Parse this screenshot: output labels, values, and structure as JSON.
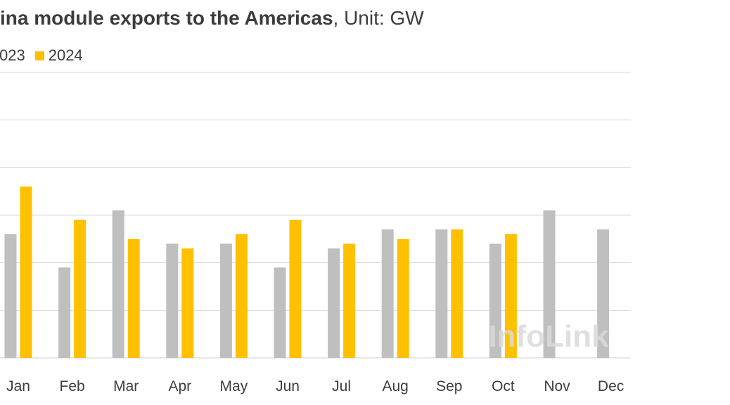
{
  "chart_data": {
    "type": "bar",
    "title_bold": "ina module exports to the Americas",
    "title_rest": ", Unit: GW",
    "categories": [
      "Jan",
      "Feb",
      "Mar",
      "Apr",
      "May",
      "Jun",
      "Jul",
      "Aug",
      "Sep",
      "Oct",
      "Nov",
      "Dec"
    ],
    "series": [
      {
        "name": "023",
        "color": "#bfbfbf",
        "values": [
          1.3,
          0.95,
          1.55,
          1.2,
          1.2,
          0.95,
          1.15,
          1.35,
          1.35,
          1.2,
          1.55,
          1.35
        ]
      },
      {
        "name": "2024",
        "color": "#ffc000",
        "values": [
          1.8,
          1.45,
          1.25,
          1.15,
          1.3,
          1.45,
          1.2,
          1.25,
          1.35,
          1.3,
          null,
          null
        ]
      }
    ],
    "ylim": [
      0,
      3.0
    ],
    "y_gridlines": [
      0,
      0.5,
      1.0,
      1.5,
      2.0,
      2.5,
      3.0
    ],
    "grid": true,
    "legend_position": "top-left",
    "watermark": "InfoLink"
  }
}
